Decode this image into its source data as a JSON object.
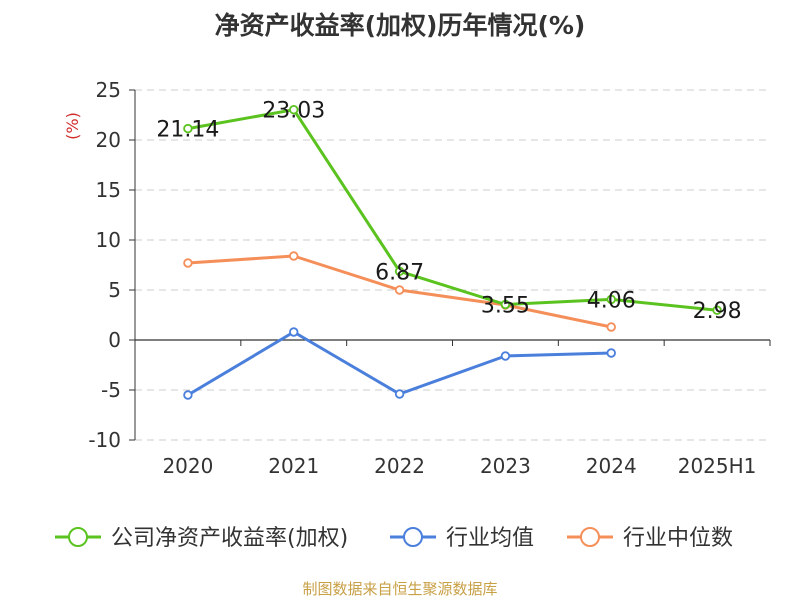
{
  "chart_data": {
    "type": "line",
    "title": "净资产收益率(加权)历年情况(%)",
    "ylabel": "(%)",
    "categories": [
      "2020",
      "2021",
      "2022",
      "2023",
      "2024",
      "2025H1"
    ],
    "ylim": [
      -10,
      25
    ],
    "yticks": [
      "25",
      "20",
      "15",
      "10",
      "5",
      "0",
      "-5",
      "-10"
    ],
    "grid": true,
    "legend_position": "bottom",
    "series": [
      {
        "name": "公司净资产收益率(加权)",
        "color": "#5bc31f",
        "values": [
          21.14,
          23.03,
          6.87,
          3.55,
          4.06,
          2.98
        ],
        "labels": [
          "21.14",
          "23.03",
          "6.87",
          "3.55",
          "4.06",
          "2.98"
        ]
      },
      {
        "name": "行业均值",
        "color": "#4a7fdc",
        "values": [
          -5.5,
          0.8,
          -5.4,
          -1.6,
          -1.3,
          null
        ]
      },
      {
        "name": "行业中位数",
        "color": "#f58f5a",
        "values": [
          7.7,
          8.4,
          5.0,
          3.5,
          1.3,
          null
        ]
      }
    ]
  },
  "source_text": "制图数据来自恒生聚源数据库"
}
